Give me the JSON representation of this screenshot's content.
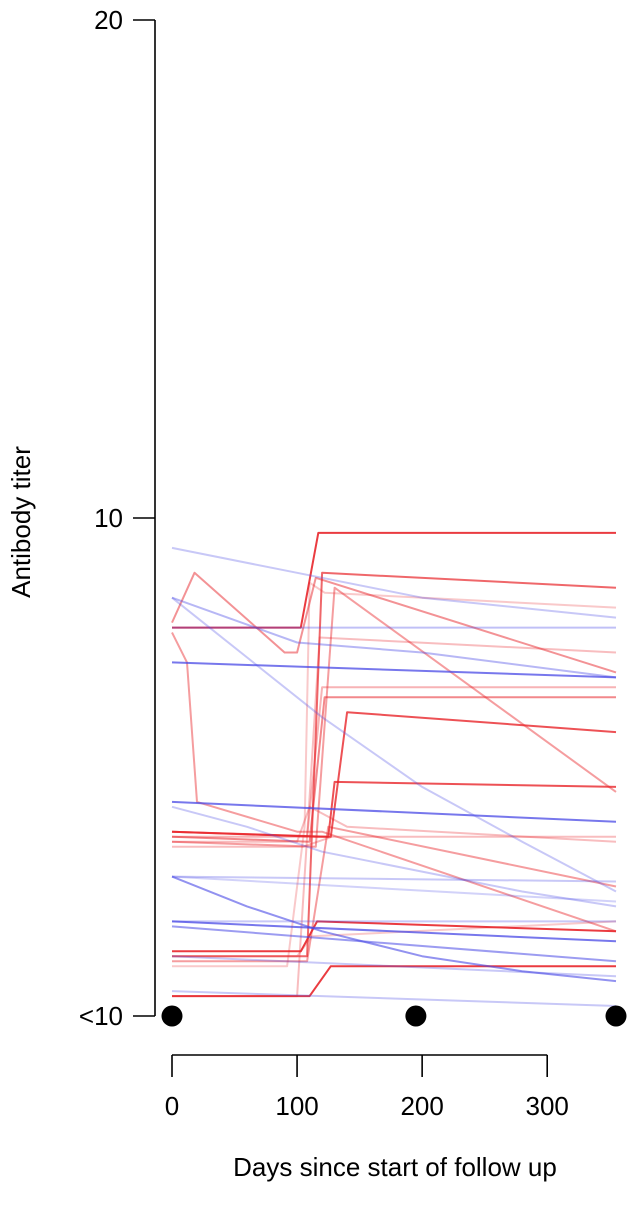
{
  "chart_data": {
    "type": "line",
    "xlabel": "Days since start of follow up",
    "ylabel": "Antibody titer",
    "xlim": [
      0,
      355
    ],
    "ylim": [
      0,
      20
    ],
    "x_ticks": [
      {
        "value": 0,
        "label": "0"
      },
      {
        "value": 100,
        "label": "100"
      },
      {
        "value": 200,
        "label": "200"
      },
      {
        "value": 300,
        "label": "300"
      }
    ],
    "y_ticks": [
      {
        "value": 0,
        "label": "<10"
      },
      {
        "value": 10,
        "label": "10"
      },
      {
        "value": 20,
        "label": "20"
      }
    ],
    "grid": false,
    "legend": "none",
    "colors": {
      "red": "#e8262b",
      "blue": "#4a4ae6",
      "marker": "#000000"
    },
    "visit_markers": [
      {
        "x": 0,
        "y": 0
      },
      {
        "x": 195,
        "y": 0
      },
      {
        "x": 355,
        "y": 0
      }
    ],
    "series": [
      {
        "color": "red",
        "opacity": 0.9,
        "points": [
          [
            0,
            7.8
          ],
          [
            103,
            7.8
          ],
          [
            117,
            9.7
          ],
          [
            355,
            9.7
          ]
        ]
      },
      {
        "color": "red",
        "opacity": 0.8,
        "points": [
          [
            0,
            3.7
          ],
          [
            115,
            3.6
          ],
          [
            127,
            3.6
          ],
          [
            140,
            6.1
          ],
          [
            355,
            5.7
          ]
        ]
      },
      {
        "color": "red",
        "opacity": 0.8,
        "points": [
          [
            0,
            3.7
          ],
          [
            125,
            3.6
          ],
          [
            130,
            4.7
          ],
          [
            355,
            4.6
          ]
        ]
      },
      {
        "color": "red",
        "opacity": 0.9,
        "points": [
          [
            0,
            1.3
          ],
          [
            103,
            1.3
          ],
          [
            116,
            1.9
          ],
          [
            355,
            1.7
          ]
        ]
      },
      {
        "color": "red",
        "opacity": 0.9,
        "points": [
          [
            0,
            0.4
          ],
          [
            110,
            0.4
          ],
          [
            127,
            1.0
          ],
          [
            355,
            1.0
          ]
        ]
      },
      {
        "color": "red",
        "opacity": 0.7,
        "points": [
          [
            0,
            1.2
          ],
          [
            108,
            1.2
          ],
          [
            120,
            8.9
          ],
          [
            355,
            8.6
          ]
        ]
      },
      {
        "color": "red",
        "opacity": 0.55,
        "points": [
          [
            0,
            3.6
          ],
          [
            110,
            3.5
          ],
          [
            122,
            6.4
          ],
          [
            355,
            6.4
          ]
        ]
      },
      {
        "color": "red",
        "opacity": 0.5,
        "points": [
          [
            0,
            7.9
          ],
          [
            18,
            8.9
          ],
          [
            90,
            7.3
          ],
          [
            100,
            7.3
          ],
          [
            115,
            8.8
          ],
          [
            355,
            6.9
          ]
        ]
      },
      {
        "color": "red",
        "opacity": 0.45,
        "points": [
          [
            0,
            3.5
          ],
          [
            115,
            3.4
          ],
          [
            130,
            8.6
          ],
          [
            355,
            4.5
          ]
        ]
      },
      {
        "color": "red",
        "opacity": 0.45,
        "points": [
          [
            0,
            7.7
          ],
          [
            12,
            7.1
          ],
          [
            20,
            4.3
          ],
          [
            100,
            3.7
          ],
          [
            120,
            3.7
          ],
          [
            355,
            1.7
          ]
        ]
      },
      {
        "color": "red",
        "opacity": 0.45,
        "points": [
          [
            0,
            1.1
          ],
          [
            108,
            1.1
          ],
          [
            125,
            3.8
          ],
          [
            355,
            2.6
          ]
        ]
      },
      {
        "color": "red",
        "opacity": 0.35,
        "points": [
          [
            0,
            3.6
          ],
          [
            108,
            3.6
          ],
          [
            120,
            6.6
          ],
          [
            355,
            6.6
          ]
        ]
      },
      {
        "color": "red",
        "opacity": 0.3,
        "points": [
          [
            0,
            3.5
          ],
          [
            100,
            3.5
          ],
          [
            110,
            4.2
          ],
          [
            140,
            3.8
          ],
          [
            355,
            3.5
          ]
        ]
      },
      {
        "color": "red",
        "opacity": 0.3,
        "points": [
          [
            0,
            0.4
          ],
          [
            100,
            0.4
          ],
          [
            118,
            7.6
          ],
          [
            355,
            7.3
          ]
        ]
      },
      {
        "color": "red",
        "opacity": 0.25,
        "points": [
          [
            0,
            1.0
          ],
          [
            92,
            1.0
          ],
          [
            106,
            3.8
          ],
          [
            110,
            8.7
          ],
          [
            122,
            8.5
          ],
          [
            355,
            8.2
          ]
        ]
      },
      {
        "color": "red",
        "opacity": 0.25,
        "points": [
          [
            0,
            1.2
          ],
          [
            100,
            1.2
          ],
          [
            112,
            1.6
          ],
          [
            355,
            1.9
          ]
        ]
      },
      {
        "color": "red",
        "opacity": 0.3,
        "points": [
          [
            0,
            3.4
          ],
          [
            105,
            3.4
          ],
          [
            128,
            3.6
          ],
          [
            355,
            3.6
          ]
        ]
      },
      {
        "color": "blue",
        "opacity": 0.75,
        "points": [
          [
            0,
            7.1
          ],
          [
            355,
            6.8
          ]
        ]
      },
      {
        "color": "blue",
        "opacity": 0.75,
        "points": [
          [
            0,
            4.3
          ],
          [
            355,
            3.9
          ]
        ]
      },
      {
        "color": "blue",
        "opacity": 0.75,
        "points": [
          [
            0,
            1.9
          ],
          [
            355,
            1.5
          ]
        ]
      },
      {
        "color": "blue",
        "opacity": 0.6,
        "points": [
          [
            0,
            2.8
          ],
          [
            60,
            2.2
          ],
          [
            120,
            1.7
          ],
          [
            200,
            1.2
          ],
          [
            280,
            0.9
          ],
          [
            355,
            0.7
          ]
        ]
      },
      {
        "color": "blue",
        "opacity": 0.55,
        "points": [
          [
            0,
            1.8
          ],
          [
            355,
            1.1
          ]
        ]
      },
      {
        "color": "blue",
        "opacity": 0.4,
        "points": [
          [
            0,
            8.4
          ],
          [
            100,
            7.5
          ],
          [
            200,
            7.3
          ],
          [
            355,
            6.8
          ]
        ]
      },
      {
        "color": "blue",
        "opacity": 0.35,
        "points": [
          [
            0,
            7.8
          ],
          [
            355,
            7.8
          ]
        ]
      },
      {
        "color": "blue",
        "opacity": 0.3,
        "points": [
          [
            0,
            9.4
          ],
          [
            100,
            8.9
          ],
          [
            200,
            8.4
          ],
          [
            355,
            8.0
          ]
        ]
      },
      {
        "color": "blue",
        "opacity": 0.3,
        "points": [
          [
            0,
            8.4
          ],
          [
            60,
            7.2
          ],
          [
            120,
            6.0
          ],
          [
            200,
            4.6
          ],
          [
            280,
            3.5
          ],
          [
            355,
            2.5
          ]
        ]
      },
      {
        "color": "blue",
        "opacity": 0.3,
        "points": [
          [
            0,
            2.8
          ],
          [
            355,
            2.7
          ]
        ]
      },
      {
        "color": "blue",
        "opacity": 0.3,
        "points": [
          [
            0,
            4.2
          ],
          [
            60,
            3.8
          ],
          [
            120,
            3.3
          ],
          [
            200,
            2.9
          ],
          [
            280,
            2.5
          ],
          [
            355,
            2.2
          ]
        ]
      },
      {
        "color": "blue",
        "opacity": 0.3,
        "points": [
          [
            0,
            0.5
          ],
          [
            355,
            0.2
          ]
        ]
      },
      {
        "color": "blue",
        "opacity": 0.3,
        "points": [
          [
            0,
            1.9
          ],
          [
            355,
            1.9
          ]
        ]
      },
      {
        "color": "blue",
        "opacity": 0.3,
        "points": [
          [
            0,
            1.2
          ],
          [
            355,
            0.8
          ]
        ]
      },
      {
        "color": "blue",
        "opacity": 0.25,
        "points": [
          [
            0,
            2.8
          ],
          [
            355,
            2.3
          ]
        ]
      }
    ]
  }
}
